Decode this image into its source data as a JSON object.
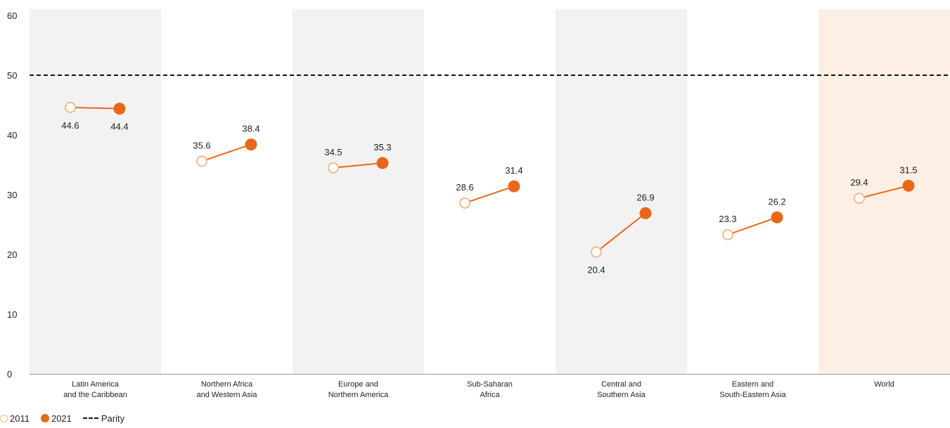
{
  "chart_data": {
    "type": "scatter",
    "categories": [
      [
        "Latin America",
        "and the Caribbean"
      ],
      [
        "Northern Africa",
        "and Western Asia"
      ],
      [
        "Europe and",
        "Northern America"
      ],
      [
        "Sub-Saharan",
        "Africa"
      ],
      [
        "Central and",
        "Southern Asia"
      ],
      [
        "Eastern and",
        "South-Eastern Asia"
      ],
      [
        "World"
      ]
    ],
    "series": [
      {
        "name": "2011",
        "values": [
          44.6,
          35.6,
          34.5,
          28.6,
          20.4,
          23.3,
          29.4
        ],
        "labels": [
          "44.6",
          "35.6",
          "34.5",
          "28.6",
          "20.4",
          "23.3",
          "29.4"
        ]
      },
      {
        "name": "2021",
        "values": [
          44.4,
          38.4,
          35.3,
          31.4,
          26.9,
          26.2,
          31.5
        ],
        "labels": [
          "44.4",
          "38.4",
          "35.3",
          "31.4",
          "26.9",
          "26.2",
          "31.5"
        ]
      }
    ],
    "reference_line": {
      "name": "Parity",
      "value": 50,
      "style": "dashed"
    },
    "yticks": [
      "0",
      "10",
      "20",
      "30",
      "40",
      "50",
      "60"
    ],
    "ylim": [
      0,
      60
    ],
    "xlabel": "",
    "ylabel": "",
    "title": "",
    "legend": {
      "placement": "bottom-left",
      "items": [
        "2011",
        "2021",
        "Parity"
      ]
    },
    "grid": false,
    "colors": {
      "series_2011_stroke": "#f5b98a",
      "series_2021_fill": "#e8671b",
      "connector": "#e8671b",
      "band_gray": "#f2f2f2",
      "band_world": "#fdefe4",
      "parity_line": "#111111"
    }
  }
}
